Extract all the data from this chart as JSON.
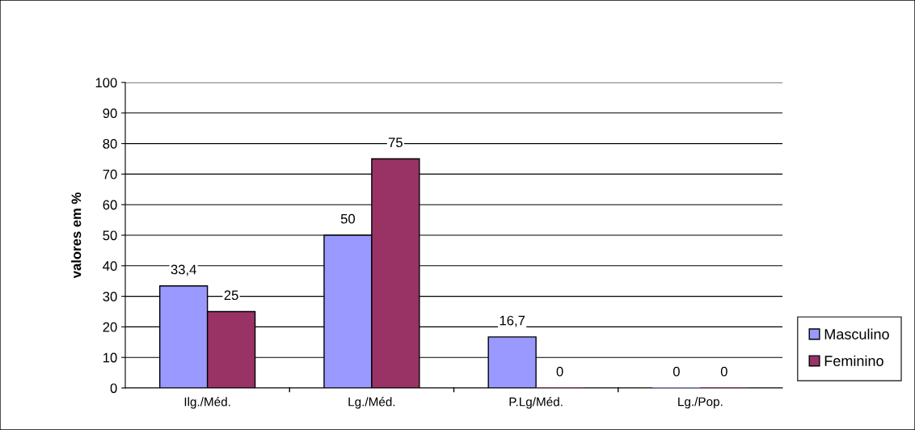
{
  "chart_data": {
    "type": "bar",
    "ylabel": "valores em %",
    "categories": [
      "Ilg./Méd.",
      "Lg./Méd.",
      "P.Lg/Méd.",
      "Lg./Pop."
    ],
    "series": [
      {
        "name": "Masculino",
        "color": "#9999ff",
        "values": [
          33.4,
          50,
          16.7,
          0
        ],
        "value_labels": [
          "33,4",
          "50",
          "16,7",
          "0"
        ]
      },
      {
        "name": "Feminino",
        "color": "#993366",
        "values": [
          25,
          75,
          0,
          0
        ],
        "value_labels": [
          "25",
          "75",
          "0",
          "0"
        ]
      }
    ],
    "ylim": [
      0,
      100
    ],
    "yticks": [
      0,
      10,
      20,
      30,
      40,
      50,
      60,
      70,
      80,
      90,
      100
    ],
    "grid": "y",
    "legend": "right"
  }
}
